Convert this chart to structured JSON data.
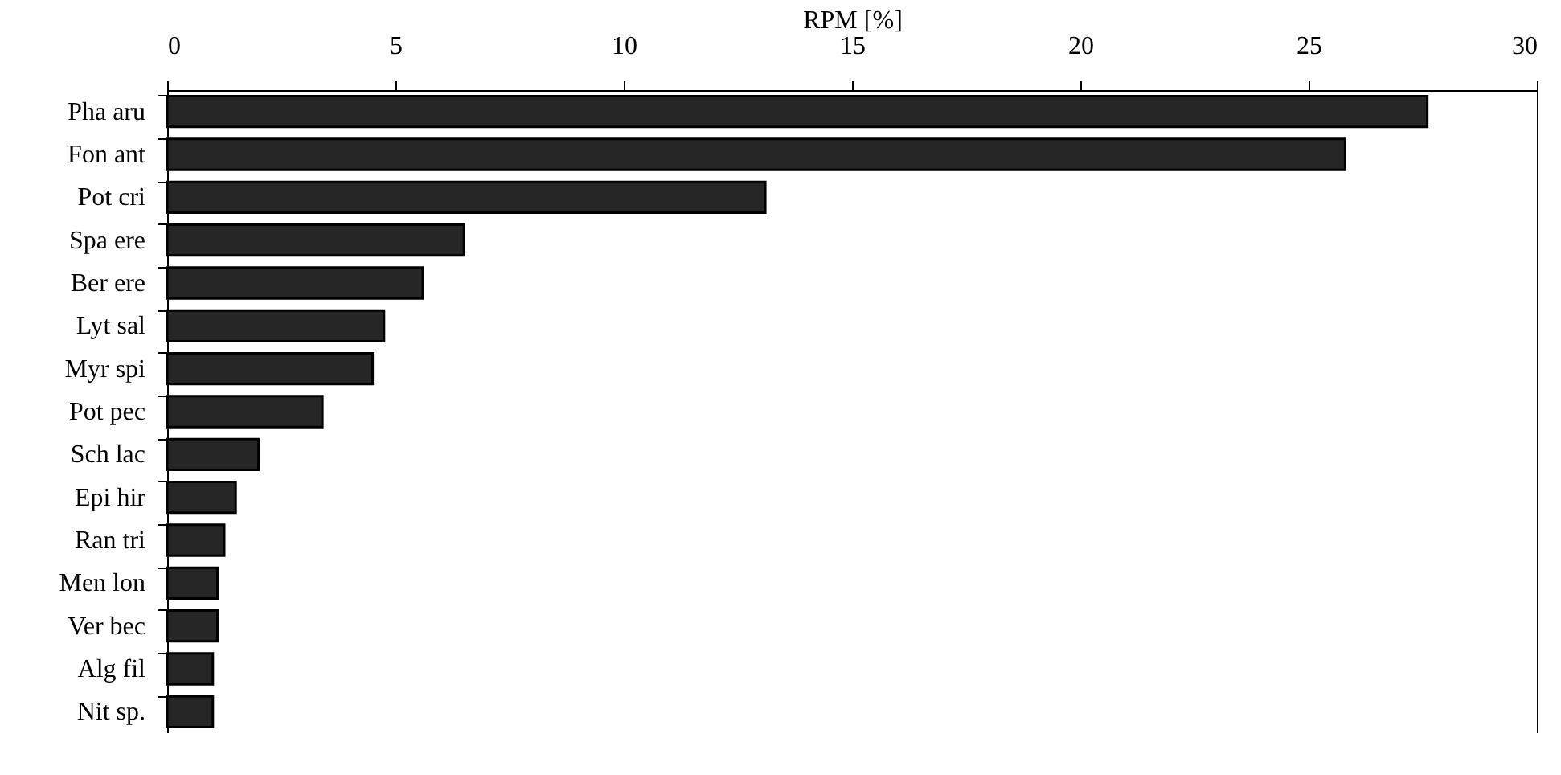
{
  "chart_data": {
    "type": "bar",
    "orientation": "horizontal",
    "xlabel": "RPM [%]",
    "categories": [
      "Pha aru",
      "Fon ant",
      "Pot cri",
      "Spa ere",
      "Ber ere",
      "Lyt sal",
      "Myr spi",
      "Pot pec",
      "Sch lac",
      "Epi hir",
      "Ran tri",
      "Men lon",
      "Ver bec",
      "Alg fil",
      "Nit sp."
    ],
    "values": [
      27.6,
      25.8,
      13.1,
      6.5,
      5.6,
      4.75,
      4.5,
      3.4,
      2.0,
      1.5,
      1.25,
      1.1,
      1.1,
      1.0,
      1.0
    ],
    "color": "#262626",
    "xlim": [
      0,
      30
    ],
    "xticks": [
      0,
      5,
      10,
      15,
      20,
      25,
      30
    ]
  }
}
